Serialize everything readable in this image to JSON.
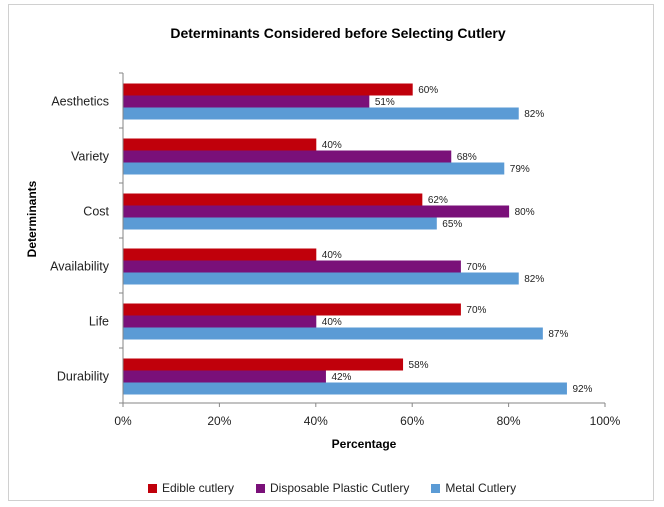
{
  "chart_data": {
    "type": "bar",
    "orientation": "horizontal",
    "title": "Determinants Considered before Selecting Cutlery",
    "xlabel": "Percentage",
    "ylabel": "Determinants",
    "xlim": [
      0,
      100
    ],
    "xticks": [
      "0%",
      "20%",
      "40%",
      "60%",
      "80%",
      "100%"
    ],
    "categories": [
      "Aesthetics",
      "Variety",
      "Cost",
      "Availability",
      "Life",
      "Durability"
    ],
    "series": [
      {
        "name": "Edible cutlery",
        "color": "#c0000b",
        "values": [
          60,
          40,
          62,
          40,
          70,
          58
        ]
      },
      {
        "name": "Disposable Plastic Cutlery",
        "color": "#7a1079",
        "values": [
          51,
          68,
          80,
          70,
          40,
          42
        ]
      },
      {
        "name": "Metal Cutlery",
        "color": "#5b9bd5",
        "values": [
          82,
          79,
          65,
          82,
          87,
          92
        ]
      }
    ],
    "legend_position": "bottom",
    "grid": false,
    "data_labels": true
  }
}
